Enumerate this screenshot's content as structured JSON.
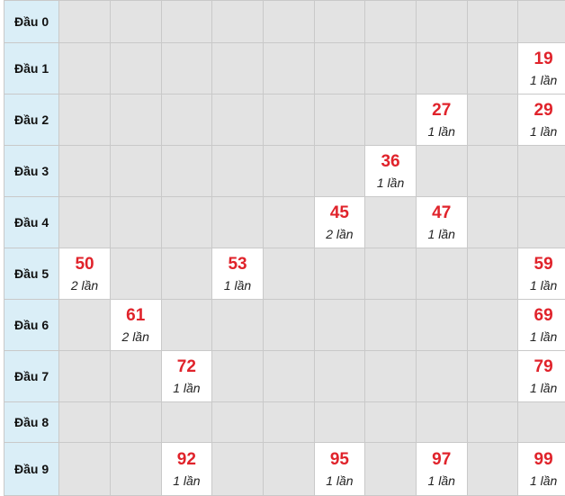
{
  "rows": [
    {
      "head": "Đầu 0",
      "cells": [
        null,
        null,
        null,
        null,
        null,
        null,
        null,
        null,
        null,
        null
      ]
    },
    {
      "head": "Đầu 1",
      "cells": [
        null,
        null,
        null,
        null,
        null,
        null,
        null,
        null,
        null,
        {
          "n": "19",
          "c": "1 lần"
        }
      ]
    },
    {
      "head": "Đầu 2",
      "cells": [
        null,
        null,
        null,
        null,
        null,
        null,
        null,
        {
          "n": "27",
          "c": "1 lần"
        },
        null,
        {
          "n": "29",
          "c": "1 lần"
        }
      ]
    },
    {
      "head": "Đầu 3",
      "cells": [
        null,
        null,
        null,
        null,
        null,
        null,
        {
          "n": "36",
          "c": "1 lần"
        },
        null,
        null,
        null
      ]
    },
    {
      "head": "Đầu 4",
      "cells": [
        null,
        null,
        null,
        null,
        null,
        {
          "n": "45",
          "c": "2 lần"
        },
        null,
        {
          "n": "47",
          "c": "1 lần"
        },
        null,
        null
      ]
    },
    {
      "head": "Đầu 5",
      "cells": [
        {
          "n": "50",
          "c": "2 lần"
        },
        null,
        null,
        {
          "n": "53",
          "c": "1 lần"
        },
        null,
        null,
        null,
        null,
        null,
        {
          "n": "59",
          "c": "1 lần"
        }
      ]
    },
    {
      "head": "Đầu 6",
      "cells": [
        null,
        {
          "n": "61",
          "c": "2 lần"
        },
        null,
        null,
        null,
        null,
        null,
        null,
        null,
        {
          "n": "69",
          "c": "1 lần"
        }
      ]
    },
    {
      "head": "Đầu 7",
      "cells": [
        null,
        null,
        {
          "n": "72",
          "c": "1 lần"
        },
        null,
        null,
        null,
        null,
        null,
        null,
        {
          "n": "79",
          "c": "1 lần"
        }
      ]
    },
    {
      "head": "Đầu 8",
      "cells": [
        null,
        null,
        null,
        null,
        null,
        null,
        null,
        null,
        null,
        null
      ]
    },
    {
      "head": "Đầu 9",
      "cells": [
        null,
        null,
        {
          "n": "92",
          "c": "1 lần"
        },
        null,
        null,
        {
          "n": "95",
          "c": "1 lần"
        },
        null,
        {
          "n": "97",
          "c": "1 lần"
        },
        null,
        {
          "n": "99",
          "c": "1 lần"
        }
      ]
    }
  ],
  "colors": {
    "number": "#e0232b",
    "header_bg": "#daeef7",
    "empty_bg": "#e3e3e3",
    "hit_bg": "#ffffff"
  }
}
